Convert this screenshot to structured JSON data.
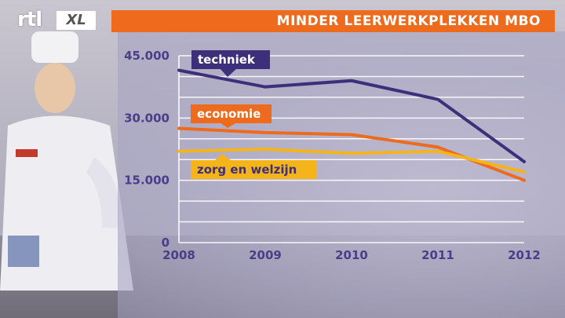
{
  "header": {
    "logo_text": "rtl",
    "logo_badge": "XL",
    "title": "MINDER LEERWERKPLEKKEN MBO"
  },
  "colors": {
    "title_bar": "#ee6a1c",
    "techniek": "#3d2f7a",
    "economie": "#ee6a1c",
    "zorg_en_welzijn": "#f4b41a",
    "axis_text": "#4b3d88",
    "grid": "#ffffff"
  },
  "chart_data": {
    "type": "line",
    "title": "MINDER LEERWERKPLEKKEN MBO",
    "x": [
      "2008",
      "2009",
      "2010",
      "2011",
      "2012"
    ],
    "ylim": [
      0,
      45000
    ],
    "y_ticks": [
      "45.000",
      "30.000",
      "15.000",
      "0"
    ],
    "grid": true,
    "series": [
      {
        "name": "techniek",
        "values": [
          41500,
          37500,
          39000,
          34500,
          19500
        ]
      },
      {
        "name": "economie",
        "values": [
          27500,
          26500,
          26000,
          23000,
          15000
        ]
      },
      {
        "name": "zorg en welzijn",
        "values": [
          22000,
          22500,
          21500,
          22000,
          17000
        ]
      }
    ]
  }
}
